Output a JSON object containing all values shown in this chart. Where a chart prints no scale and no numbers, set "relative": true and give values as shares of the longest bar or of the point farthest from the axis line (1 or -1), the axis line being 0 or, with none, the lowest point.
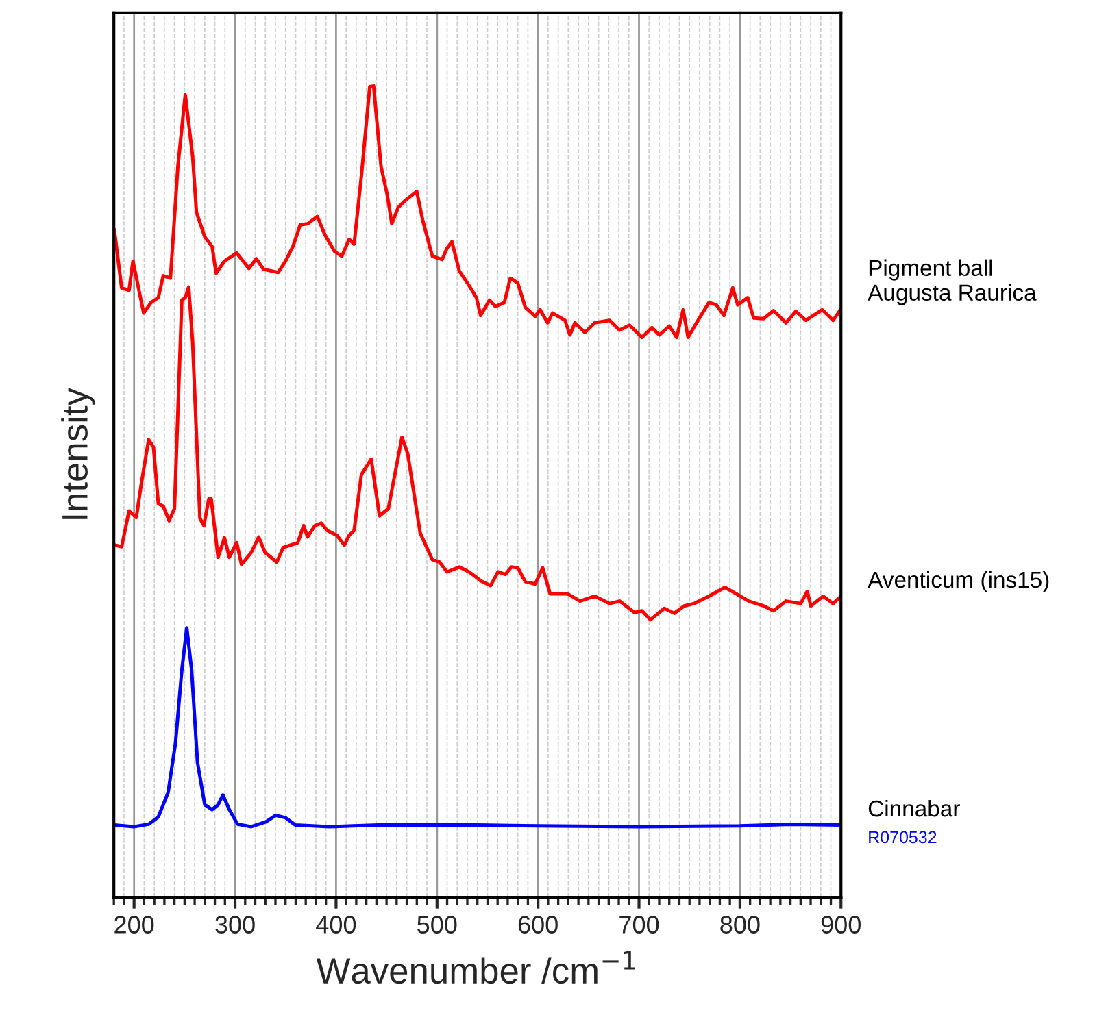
{
  "chart_data": {
    "type": "line",
    "relative": true,
    "xlabel": "Wavenumber /cm$^{−1}$",
    "ylabel": "Intensity",
    "xlim": [
      180,
      900
    ],
    "xticks": [
      200,
      300,
      400,
      500,
      600,
      700,
      800,
      900
    ],
    "grid": "x",
    "legend": false,
    "tick_labels": "x",
    "series": [
      {
        "name": "Pigment ball\nAugusta Raurica",
        "color": "#ff0000",
        "x": [
          180.4,
          187.7,
          195,
          198.9,
          209.5,
          216.8,
          224,
          228.9,
          236,
          243.4,
          250.7,
          258,
          261.8,
          270,
          277.3,
          281.2,
          289.5,
          301.6,
          313.7,
          321,
          328.2,
          342.7,
          350,
          357.3,
          364.6,
          371.8,
          381.5,
          388.8,
          398.5,
          405.7,
          413,
          417.9,
          425.1,
          433.4,
          437.2,
          444.5,
          450.8,
          455.2,
          461.5,
          468.7,
          479.9,
          485.7,
          495.4,
          505.1,
          509.9,
          514.8,
          522,
          531.7,
          539,
          543.2,
          552,
          557.9,
          566.7,
          572.6,
          580,
          587.4,
          597.2,
          602.1,
          609.5,
          614.4,
          626.7,
          631.6,
          636.6,
          646.4,
          656.2,
          671,
          680.8,
          690.6,
          703,
          712.8,
          720.1,
          730,
          737.3,
          743.7,
          748.6,
          757,
          769.3,
          776.7,
          784.1,
          792.9,
          797.8,
          807.6,
          813.5,
          823.4,
          833.2,
          845.5,
          855.3,
          865.2,
          881.4,
          892.2,
          900
        ],
        "values": [
          0.823,
          0.751,
          0.748,
          0.784,
          0.72,
          0.733,
          0.739,
          0.766,
          0.763,
          0.901,
          0.989,
          0.913,
          0.844,
          0.814,
          0.802,
          0.769,
          0.784,
          0.794,
          0.775,
          0.787,
          0.774,
          0.77,
          0.784,
          0.802,
          0.829,
          0.83,
          0.839,
          0.817,
          0.796,
          0.79,
          0.811,
          0.805,
          0.889,
          0.999,
          1.0,
          0.901,
          0.865,
          0.83,
          0.85,
          0.859,
          0.87,
          0.835,
          0.79,
          0.786,
          0.8,
          0.808,
          0.772,
          0.754,
          0.739,
          0.717,
          0.736,
          0.728,
          0.733,
          0.763,
          0.757,
          0.727,
          0.716,
          0.724,
          0.708,
          0.72,
          0.711,
          0.693,
          0.708,
          0.696,
          0.708,
          0.711,
          0.699,
          0.705,
          0.69,
          0.702,
          0.693,
          0.704,
          0.69,
          0.724,
          0.69,
          0.708,
          0.733,
          0.73,
          0.717,
          0.751,
          0.73,
          0.739,
          0.714,
          0.713,
          0.723,
          0.708,
          0.722,
          0.711,
          0.724,
          0.711,
          0.725
        ]
      },
      {
        "name": "Aventicum (ins15)",
        "color": "#ff0000",
        "x": [
          181.4,
          187.7,
          195,
          202.2,
          207.1,
          214.4,
          219.2,
          224,
          228.9,
          234.7,
          240,
          247.3,
          250.7,
          254.1,
          258,
          265.2,
          269.1,
          274,
          276.4,
          283.2,
          289.5,
          294.3,
          301.6,
          306.4,
          316.1,
          323.4,
          329.7,
          341.3,
          347.6,
          354.9,
          362.1,
          367.9,
          371.8,
          379.1,
          385.4,
          391.2,
          400.9,
          408.2,
          413,
          417.9,
          425.1,
          434.8,
          443,
          451.8,
          465.3,
          471.1,
          483.3,
          495.4,
          502.6,
          509.9,
          522,
          531.7,
          538.2,
          543.2,
          553,
          560.4,
          567.7,
          573.6,
          580,
          587.4,
          597.2,
          604.6,
          612,
          629.2,
          641.5,
          656.2,
          671,
          680.8,
          695.5,
          703,
          711.3,
          725.1,
          734.9,
          744.7,
          754.5,
          769.3,
          785,
          796.3,
          808.6,
          823.4,
          833.2,
          845.5,
          860.2,
          866.6,
          870.1,
          882.4,
          892.2,
          900
        ],
        "values": [
          0.434,
          0.432,
          0.476,
          0.468,
          0.509,
          0.564,
          0.555,
          0.485,
          0.482,
          0.464,
          0.479,
          0.736,
          0.739,
          0.752,
          0.684,
          0.467,
          0.458,
          0.491,
          0.491,
          0.419,
          0.443,
          0.419,
          0.437,
          0.41,
          0.425,
          0.444,
          0.425,
          0.413,
          0.431,
          0.434,
          0.437,
          0.458,
          0.444,
          0.458,
          0.461,
          0.452,
          0.446,
          0.434,
          0.446,
          0.452,
          0.521,
          0.54,
          0.47,
          0.479,
          0.567,
          0.546,
          0.449,
          0.416,
          0.413,
          0.401,
          0.407,
          0.401,
          0.395,
          0.39,
          0.384,
          0.401,
          0.398,
          0.407,
          0.406,
          0.389,
          0.386,
          0.406,
          0.374,
          0.374,
          0.365,
          0.371,
          0.362,
          0.365,
          0.351,
          0.353,
          0.342,
          0.356,
          0.35,
          0.359,
          0.362,
          0.371,
          0.382,
          0.374,
          0.365,
          0.359,
          0.353,
          0.365,
          0.362,
          0.377,
          0.359,
          0.371,
          0.362,
          0.371
        ]
      },
      {
        "name": "Cinnabar",
        "color": "#0000ff",
        "x": [
          180.4,
          199.8,
          214.4,
          224,
          233.7,
          241,
          247.3,
          252.2,
          257,
          262.8,
          270,
          277.3,
          283.2,
          288,
          294.3,
          302.5,
          316.1,
          330.6,
          340.3,
          350,
          359.7,
          393.6,
          442,
          490.5,
          539,
          600,
          700,
          800,
          850,
          900
        ],
        "values": [
          0.089,
          0.087,
          0.09,
          0.099,
          0.129,
          0.19,
          0.28,
          0.332,
          0.28,
          0.166,
          0.114,
          0.108,
          0.114,
          0.126,
          0.108,
          0.09,
          0.087,
          0.093,
          0.101,
          0.098,
          0.089,
          0.087,
          0.089,
          0.089,
          0.089,
          0.088,
          0.087,
          0.088,
          0.09,
          0.089
        ]
      }
    ],
    "annotations": [
      "R070532"
    ]
  }
}
